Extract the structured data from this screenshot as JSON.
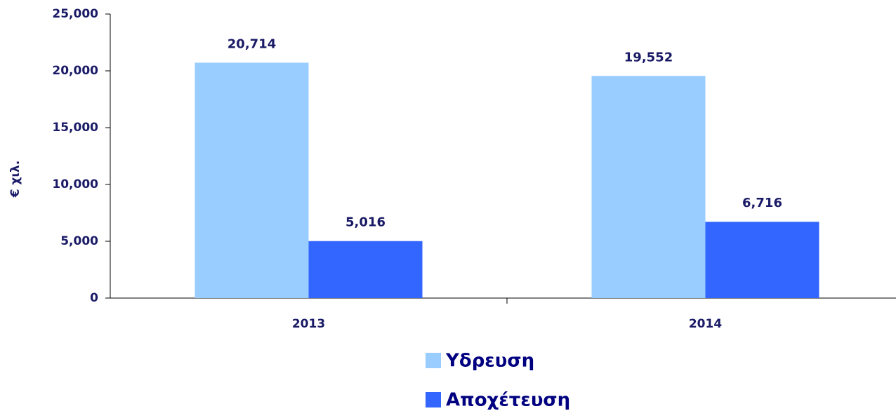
{
  "chart_data": {
    "type": "bar",
    "ylabel": "€ χιλ.",
    "categories": [
      "2013",
      "2014"
    ],
    "series": [
      {
        "name": "Υδρευση",
        "color": "#99ccff",
        "values": [
          20714,
          19552
        ],
        "value_labels": [
          "20,714",
          "19,552"
        ]
      },
      {
        "name": "Αποχέτευση",
        "color": "#3366ff",
        "values": [
          5016,
          6716
        ],
        "value_labels": [
          "5,016",
          "6,716"
        ]
      }
    ],
    "ylim": [
      0,
      25000
    ],
    "yticks": [
      0,
      {
        "value": 5000,
        "label": "5,000"
      },
      {
        "value": 10000,
        "label": "10,000"
      },
      {
        "value": 15000,
        "label": "15,000"
      },
      {
        "value": 20000,
        "label": "20,000"
      },
      {
        "value": 25000,
        "label": "25,000"
      }
    ],
    "grid": false,
    "legend": "bottom"
  }
}
